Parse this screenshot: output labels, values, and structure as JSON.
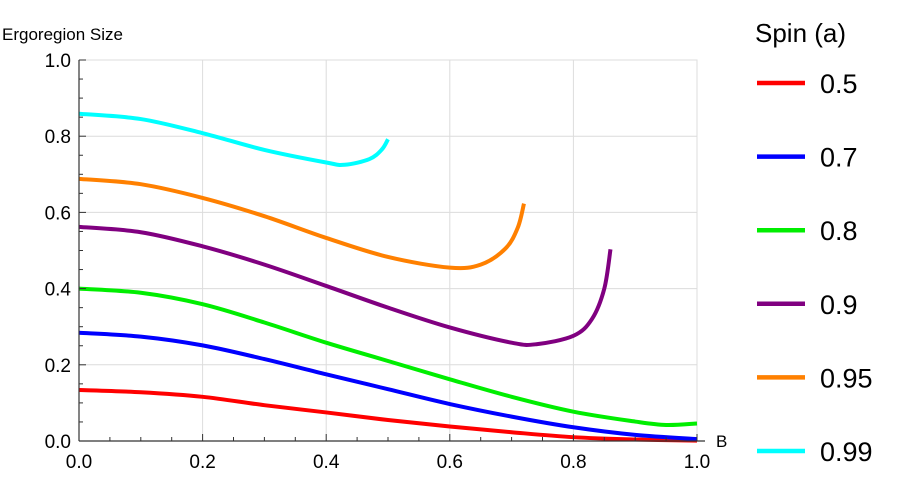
{
  "chart_data": {
    "type": "line",
    "title": "",
    "xlabel": "B",
    "ylabel": "Ergoregion Size",
    "xlim": [
      0,
      1
    ],
    "ylim": [
      0,
      1
    ],
    "xticks": [
      "0.0",
      "0.2",
      "0.4",
      "0.6",
      "0.8",
      "1.0"
    ],
    "yticks": [
      "0.0",
      "0.2",
      "0.4",
      "0.6",
      "0.8",
      "1.0"
    ],
    "grid": true,
    "legend": {
      "title": "Spin (a)",
      "placement": "right"
    },
    "series": [
      {
        "name": "0.5",
        "color": "#ff0000",
        "x": [
          0,
          0.1,
          0.2,
          0.3,
          0.4,
          0.5,
          0.6,
          0.7,
          0.8,
          0.9,
          1.0
        ],
        "y": [
          0.134,
          0.128,
          0.116,
          0.094,
          0.075,
          0.055,
          0.038,
          0.023,
          0.01,
          0.004,
          0.001
        ]
      },
      {
        "name": "0.7",
        "color": "#0000ff",
        "x": [
          0,
          0.1,
          0.2,
          0.3,
          0.4,
          0.5,
          0.6,
          0.7,
          0.8,
          0.9,
          1.0
        ],
        "y": [
          0.284,
          0.274,
          0.251,
          0.215,
          0.175,
          0.136,
          0.097,
          0.064,
          0.036,
          0.016,
          0.005
        ]
      },
      {
        "name": "0.8",
        "color": "#00ee00",
        "x": [
          0,
          0.1,
          0.2,
          0.3,
          0.4,
          0.5,
          0.6,
          0.7,
          0.8,
          0.9,
          0.95,
          1.0
        ],
        "y": [
          0.4,
          0.389,
          0.359,
          0.311,
          0.258,
          0.21,
          0.162,
          0.116,
          0.077,
          0.051,
          0.042,
          0.046
        ]
      },
      {
        "name": "0.9",
        "color": "#800080",
        "x": [
          0,
          0.1,
          0.2,
          0.3,
          0.4,
          0.5,
          0.6,
          0.7,
          0.74,
          0.8,
          0.83,
          0.85,
          0.86
        ],
        "y": [
          0.562,
          0.548,
          0.511,
          0.463,
          0.407,
          0.35,
          0.298,
          0.258,
          0.254,
          0.276,
          0.32,
          0.4,
          0.503
        ]
      },
      {
        "name": "0.95",
        "color": "#ff8000",
        "x": [
          0,
          0.1,
          0.2,
          0.3,
          0.4,
          0.5,
          0.6,
          0.65,
          0.69,
          0.71,
          0.72
        ],
        "y": [
          0.688,
          0.674,
          0.638,
          0.59,
          0.533,
          0.483,
          0.455,
          0.463,
          0.505,
          0.56,
          0.623
        ]
      },
      {
        "name": "0.99",
        "color": "#00ffff",
        "x": [
          0,
          0.1,
          0.2,
          0.3,
          0.4,
          0.43,
          0.47,
          0.49,
          0.5
        ],
        "y": [
          0.859,
          0.845,
          0.808,
          0.764,
          0.731,
          0.725,
          0.74,
          0.765,
          0.792
        ]
      }
    ]
  }
}
